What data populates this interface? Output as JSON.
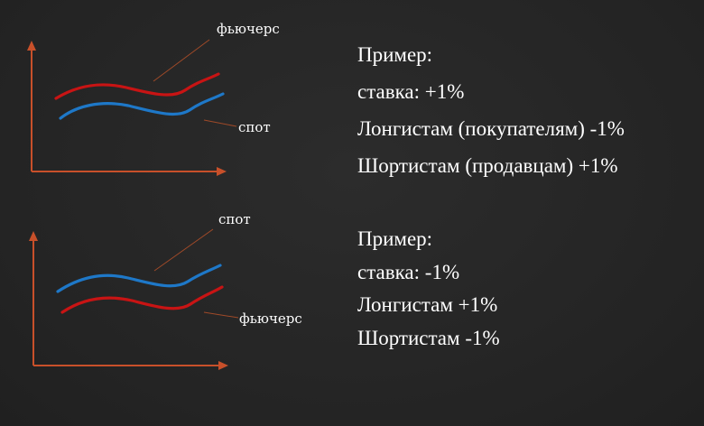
{
  "diagram_top": {
    "curve_upper_label": "фьючерс",
    "curve_lower_label": "спот",
    "colors": {
      "axis": "#c8502a",
      "upper_curve": "#c81414",
      "lower_curve": "#1e78c8"
    }
  },
  "diagram_bottom": {
    "curve_upper_label": "спот",
    "curve_lower_label": "фьючерс",
    "colors": {
      "axis": "#c8502a",
      "upper_curve": "#1e78c8",
      "lower_curve": "#c81414"
    }
  },
  "example_1": {
    "heading": "Пример:",
    "rate": "ставка:  +1%",
    "longs": "Лонгистам (покупателям) -1%",
    "shorts": "Шортистам (продавцам) +1%"
  },
  "example_2": {
    "heading": "Пример:",
    "rate": "ставка:  -1%",
    "longs": "Лонгистам +1%",
    "shorts": "Шортистам -1%"
  }
}
